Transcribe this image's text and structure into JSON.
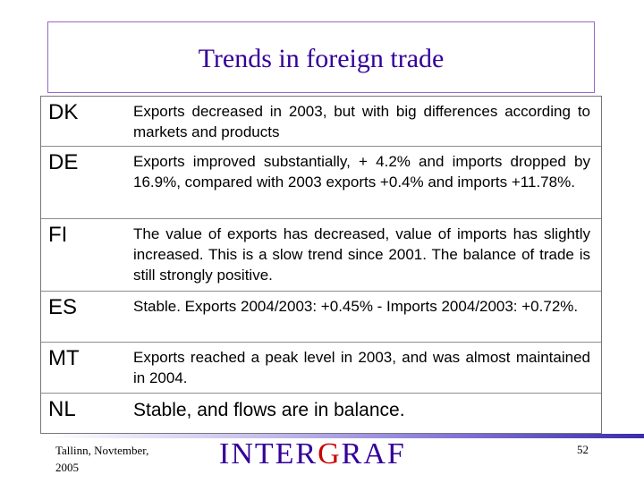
{
  "slide": {
    "title": "Trends in foreign trade",
    "rows": [
      {
        "code": "DK",
        "text": "Exports decreased in 2003, but with big differences according to markets and products"
      },
      {
        "code": "DE",
        "text": "Exports improved substantially, + 4.2% and imports dropped by 16.9%, compared with 2003 exports +0.4% and imports +11.78%."
      },
      {
        "code": "FI",
        "text": "The value of exports has decreased, value of imports has slightly increased. This is a slow trend since 2001. The balance of trade is still strongly positive."
      },
      {
        "code": "ES",
        "text": "Stable. Exports 2004/2003: +0.45% - Imports 2004/2003: +0.72%."
      },
      {
        "code": "MT",
        "text": "Exports reached a peak level in 2003, and was almost maintained in 2004."
      },
      {
        "code": "NL",
        "text": "Stable, and flows are in balance."
      }
    ]
  },
  "footer": {
    "location_line1": "Tallinn, Novtember,",
    "location_line2": "2005",
    "logo_part1": "INTER",
    "logo_part2": "G",
    "logo_part3": "RAF",
    "page_number": "52"
  }
}
